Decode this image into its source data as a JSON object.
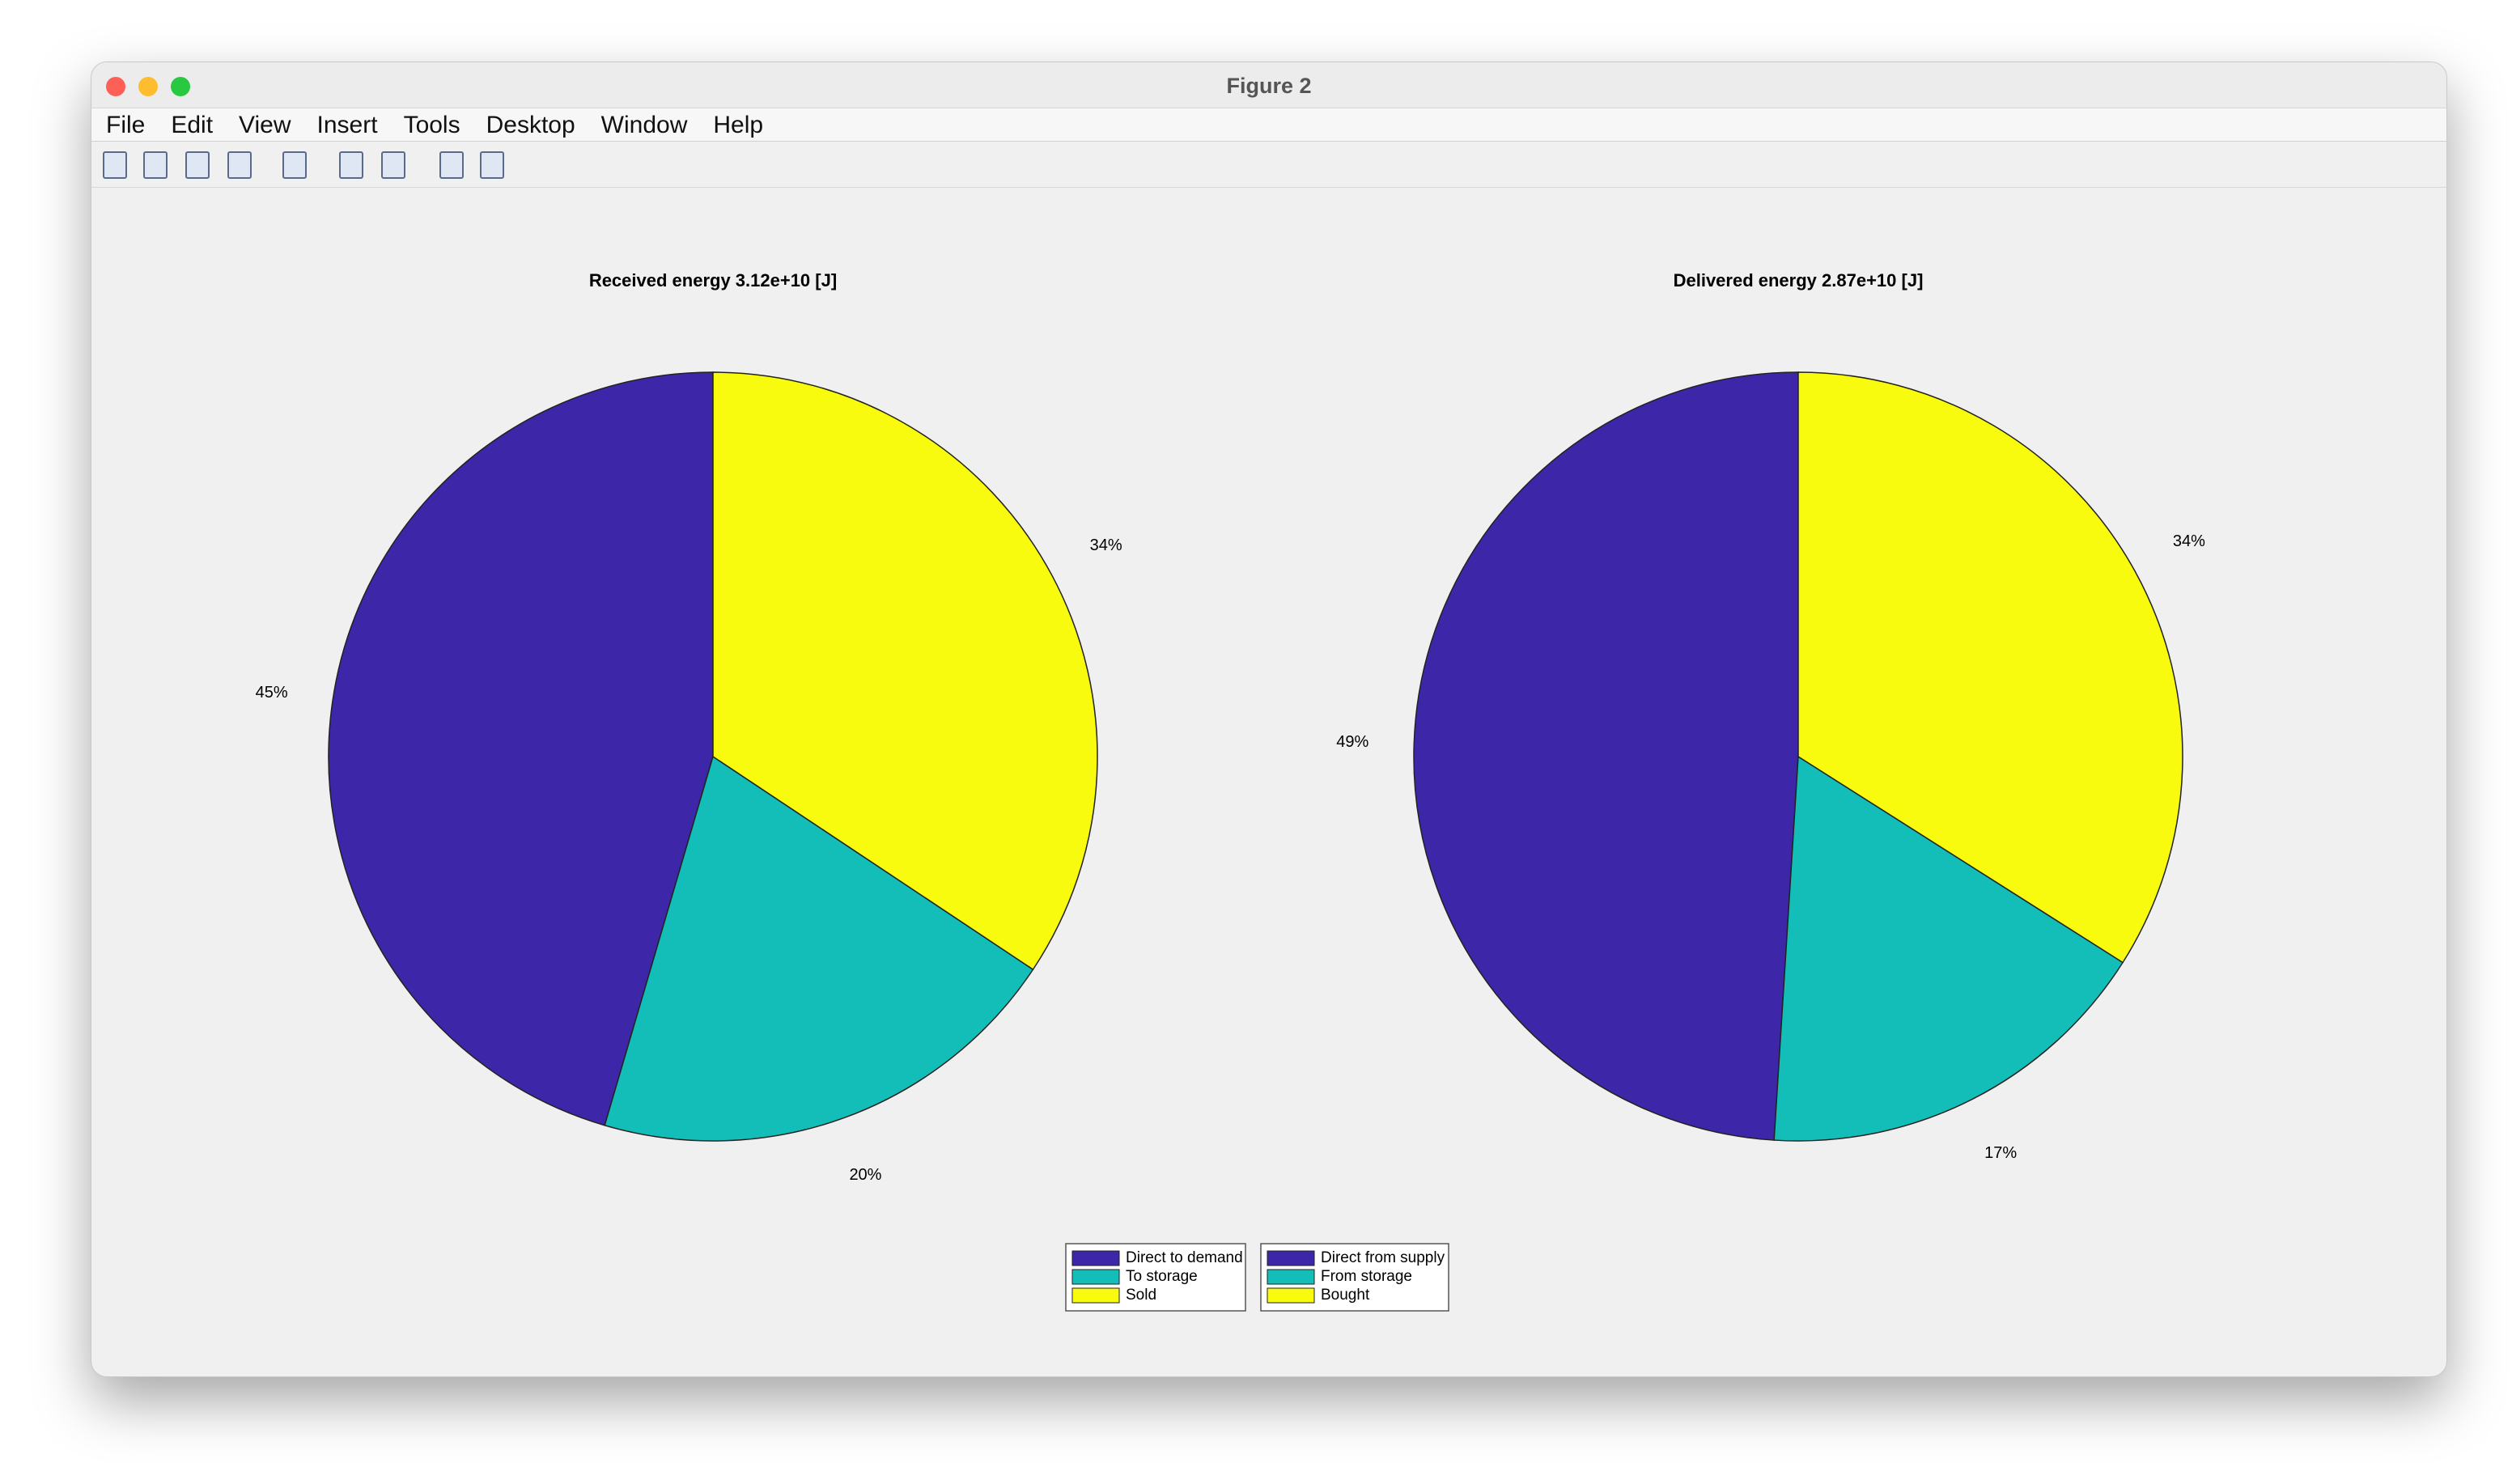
{
  "window": {
    "title": "Figure 2",
    "menu": [
      "File",
      "Edit",
      "View",
      "Insert",
      "Tools",
      "Desktop",
      "Window",
      "Help"
    ]
  },
  "chart_data": [
    {
      "type": "pie",
      "title": "Received energy 3.12e+10 [J]",
      "categories": [
        "Direct to demand",
        "To storage",
        "Sold"
      ],
      "values": [
        45,
        20,
        34
      ],
      "value_labels": [
        "45%",
        "20%",
        "34%"
      ],
      "colors": [
        "#3e26a8",
        "#13beb8",
        "#f9fb0e"
      ]
    },
    {
      "type": "pie",
      "title": "Delivered energy 2.87e+10 [J]",
      "categories": [
        "Direct from supply",
        "From storage",
        "Bought"
      ],
      "values": [
        49,
        17,
        34
      ],
      "value_labels": [
        "49%",
        "17%",
        "34%"
      ],
      "colors": [
        "#3e26a8",
        "#13beb8",
        "#f9fb0e"
      ]
    }
  ]
}
